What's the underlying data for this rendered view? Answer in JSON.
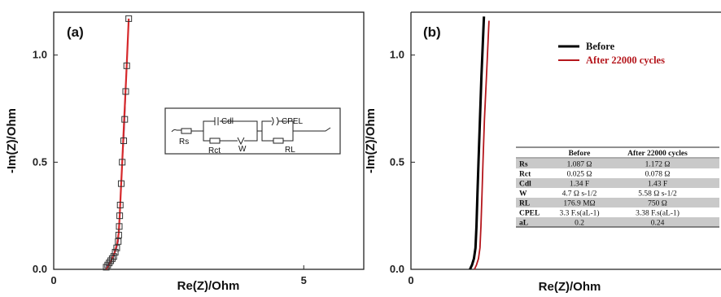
{
  "colors": {
    "before": "#000000",
    "after": "#b5161c",
    "fit": "#d6282b",
    "marker": "#333333",
    "table_shade": "#c9c9c9"
  },
  "chart_data": [
    {
      "type": "scatter",
      "panel_label": "(a)",
      "xlabel": "Re(Z)/Ohm",
      "ylabel": "-Im(Z)/Ohm",
      "xlim": [
        0,
        6.2
      ],
      "ylim": [
        0,
        1.2
      ],
      "xticks": [
        "0",
        "5"
      ],
      "xtick_values": [
        0,
        5
      ],
      "yticks": [
        "0.0",
        "0.5",
        "1.0"
      ],
      "ytick_values": [
        0,
        0.5,
        1.0
      ],
      "series": [
        {
          "role": "measured",
          "x": [
            1.05,
            1.08,
            1.11,
            1.14,
            1.17,
            1.2,
            1.23,
            1.26,
            1.29,
            1.3,
            1.31,
            1.32,
            1.33,
            1.35,
            1.37,
            1.4,
            1.42,
            1.44,
            1.46,
            1.5
          ],
          "y": [
            0.01,
            0.02,
            0.03,
            0.04,
            0.05,
            0.06,
            0.08,
            0.1,
            0.13,
            0.16,
            0.2,
            0.25,
            0.3,
            0.4,
            0.5,
            0.6,
            0.7,
            0.83,
            0.95,
            1.17
          ]
        },
        {
          "role": "fit",
          "x": [
            1.05,
            1.15,
            1.22,
            1.27,
            1.3,
            1.32,
            1.34,
            1.37,
            1.41,
            1.45,
            1.5
          ],
          "y": [
            0.0,
            0.04,
            0.08,
            0.12,
            0.17,
            0.25,
            0.35,
            0.5,
            0.7,
            0.9,
            1.17
          ]
        }
      ],
      "circuit": {
        "labels": [
          "Rs",
          "Cdl",
          "Rct",
          "W",
          "CPEL",
          "RL"
        ]
      }
    },
    {
      "type": "line",
      "panel_label": "(b)",
      "xlabel": "Re(Z)/Ohm",
      "ylabel": "-Im(Z)/Ohm",
      "xlim": [
        0,
        6.2
      ],
      "ylim": [
        0,
        1.2
      ],
      "xticks": [
        "0"
      ],
      "xtick_values": [
        0
      ],
      "yticks": [
        "0.0",
        "0.5",
        "1.0"
      ],
      "ytick_values": [
        0,
        0.5,
        1.0
      ],
      "legend": [
        "Before",
        "After 22000 cycles"
      ],
      "series": [
        {
          "name": "Before",
          "x": [
            1.18,
            1.22,
            1.26,
            1.29,
            1.31,
            1.33,
            1.35,
            1.38,
            1.41,
            1.46
          ],
          "y": [
            0.0,
            0.02,
            0.05,
            0.1,
            0.2,
            0.35,
            0.5,
            0.7,
            0.9,
            1.18
          ]
        },
        {
          "name": "After 22000 cycles",
          "x": [
            1.27,
            1.31,
            1.35,
            1.38,
            1.4,
            1.42,
            1.44,
            1.47,
            1.51,
            1.56
          ],
          "y": [
            0.0,
            0.02,
            0.05,
            0.1,
            0.2,
            0.35,
            0.5,
            0.7,
            0.9,
            1.16
          ]
        }
      ],
      "table": {
        "headers": [
          "",
          "Before",
          "After 22000 cycles"
        ],
        "rows": [
          [
            "Rs",
            "1.087 Ω",
            "1.172 Ω"
          ],
          [
            "Rct",
            "0.025 Ω",
            "0.078 Ω"
          ],
          [
            "Cdl",
            "1.34 F",
            "1.43 F"
          ],
          [
            "W",
            "4.7 Ω s-1/2",
            "5.58 Ω s-1/2"
          ],
          [
            "RL",
            "176.9 MΩ",
            "750 Ω"
          ],
          [
            "CPEL",
            "3.3 F.s(aL-1)",
            "3.38 F.s(aL-1)"
          ],
          [
            "aL",
            "0.2",
            "0.24"
          ]
        ]
      }
    }
  ]
}
